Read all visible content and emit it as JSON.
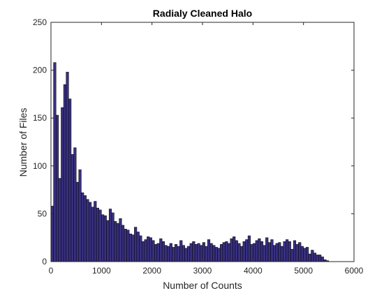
{
  "chart_data": {
    "type": "bar",
    "title": "Radialy Cleaned Halo",
    "xlabel": "Number of Counts",
    "ylabel": "Number of Files",
    "xlim": [
      0,
      6000
    ],
    "ylim": [
      0,
      250
    ],
    "xticks": [
      "0",
      "1000",
      "2000",
      "3000",
      "4000",
      "5000",
      "6000"
    ],
    "yticks": [
      "0",
      "50",
      "100",
      "150",
      "200",
      "250"
    ],
    "grid": false,
    "bin_start": 0,
    "bin_width": 50,
    "values": [
      58,
      208,
      153,
      87,
      161,
      185,
      198,
      170,
      112,
      119,
      83,
      96,
      72,
      69,
      65,
      62,
      57,
      63,
      56,
      54,
      49,
      48,
      43,
      55,
      51,
      42,
      40,
      45,
      38,
      34,
      33,
      29,
      28,
      36,
      31,
      27,
      21,
      23,
      26,
      25,
      22,
      18,
      19,
      24,
      21,
      17,
      16,
      19,
      15,
      18,
      16,
      22,
      17,
      14,
      16,
      19,
      21,
      18,
      19,
      17,
      20,
      16,
      23,
      19,
      17,
      15,
      14,
      18,
      20,
      21,
      19,
      24,
      26,
      22,
      19,
      16,
      21,
      23,
      27,
      18,
      19,
      22,
      24,
      21,
      17,
      25,
      20,
      23,
      17,
      19,
      20,
      16,
      21,
      23,
      21,
      13,
      22,
      18,
      20,
      16,
      14,
      15,
      8,
      12,
      9,
      7,
      7,
      5,
      2,
      1,
      0,
      0,
      0,
      0,
      0,
      0,
      0,
      0,
      0,
      0
    ],
    "colors": {
      "bar_fill": "#38307F",
      "bar_edge": "#000000",
      "axis": "#262626"
    }
  }
}
